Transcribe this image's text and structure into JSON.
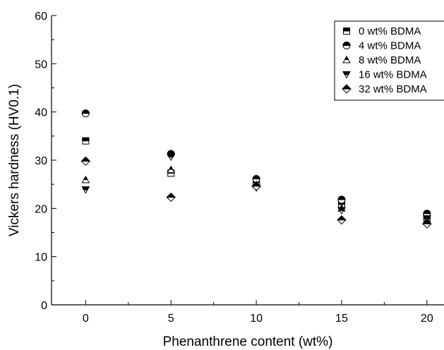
{
  "chart_data": {
    "type": "scatter",
    "title": "",
    "xlabel": "Phenanthrene content (wt%)",
    "ylabel": "Vickers hardness (HV0.1)",
    "xlim": [
      -2,
      21
    ],
    "ylim": [
      0,
      60
    ],
    "xticks": [
      0,
      5,
      10,
      15,
      20
    ],
    "yticks": [
      0,
      10,
      20,
      30,
      40,
      50,
      60
    ],
    "grid": false,
    "legend_position": "top-right",
    "x": [
      0,
      5,
      10,
      15,
      20
    ],
    "series": [
      {
        "name": "0 wt% BDMA",
        "marker": "square-half",
        "values": [
          34.0,
          27.3,
          25.3,
          20.8,
          17.8
        ]
      },
      {
        "name": "4 wt% BDMA",
        "marker": "circle-half",
        "values": [
          39.7,
          31.3,
          26.1,
          21.8,
          18.9
        ]
      },
      {
        "name": "8 wt% BDMA",
        "marker": "triangle-up-half",
        "values": [
          25.9,
          28.0,
          24.9,
          20.0,
          17.5
        ]
      },
      {
        "name": "16 wt% BDMA",
        "marker": "triangle-down-half",
        "values": [
          23.9,
          30.7,
          24.3,
          19.6,
          17.9
        ]
      },
      {
        "name": "32 wt% BDMA",
        "marker": "diamond-half",
        "values": [
          29.8,
          22.3,
          24.6,
          17.6,
          16.8
        ]
      }
    ]
  }
}
